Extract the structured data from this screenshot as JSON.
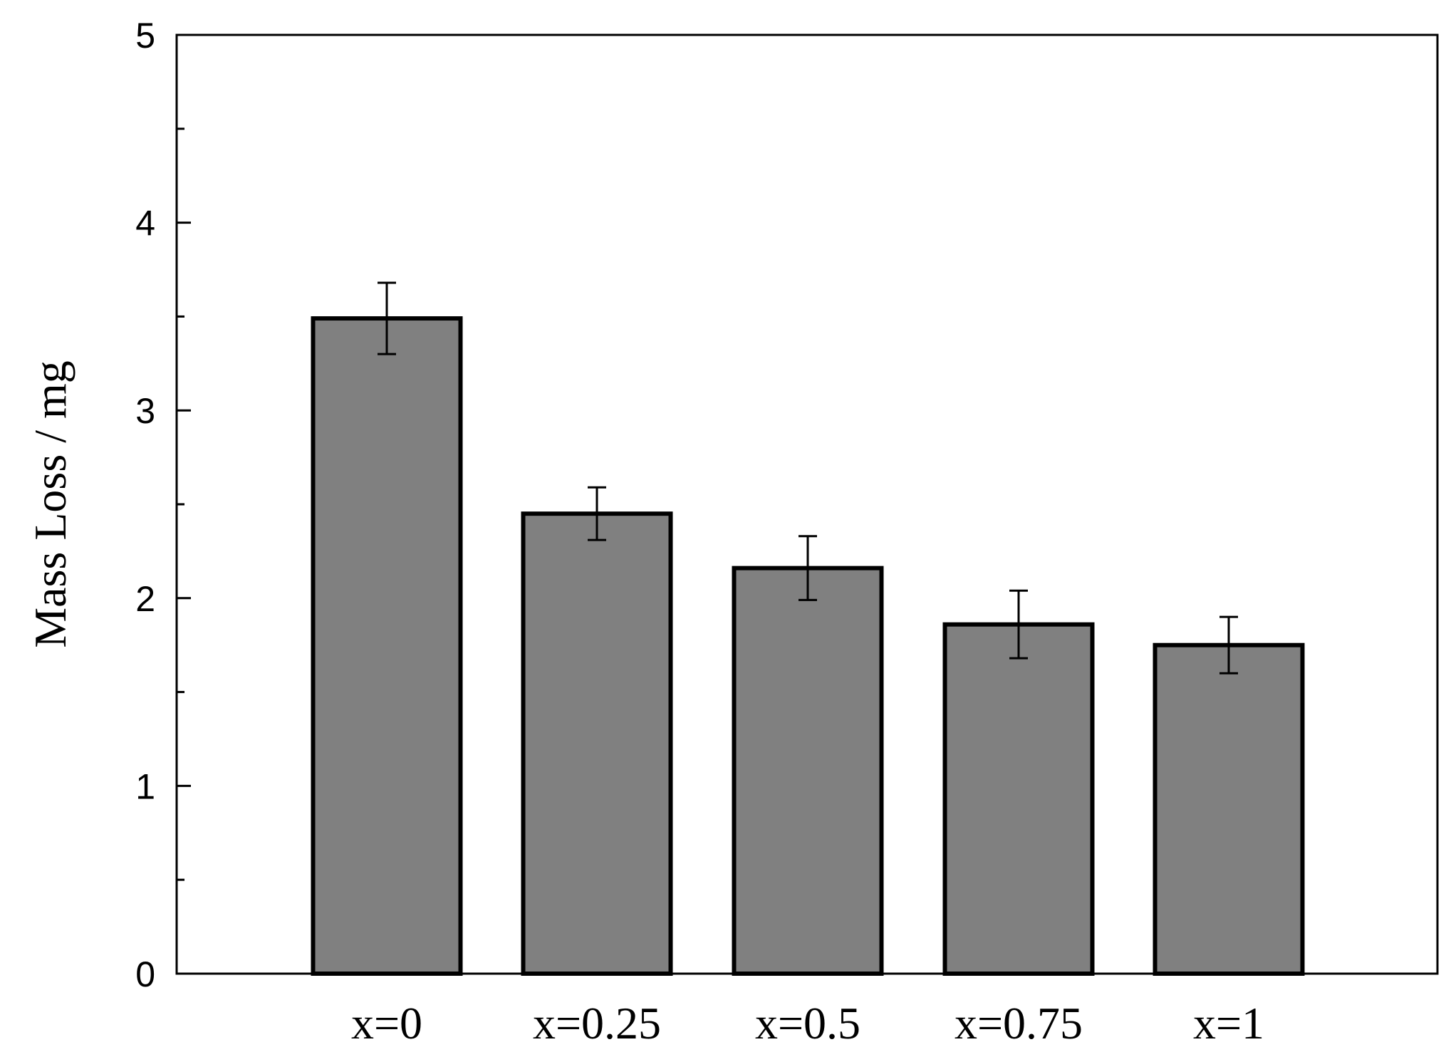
{
  "chart_data": {
    "type": "bar",
    "categories": [
      "x=0",
      "x=0.25",
      "x=0.5",
      "x=0.75",
      "x=1"
    ],
    "values": [
      3.49,
      2.45,
      2.16,
      1.86,
      1.75
    ],
    "error": [
      0.19,
      0.14,
      0.17,
      0.18,
      0.15
    ],
    "title": "",
    "xlabel": "",
    "ylabel": "Mass Loss / mg",
    "ylim": [
      0,
      5
    ],
    "yticks": [
      0,
      1,
      2,
      3,
      4,
      5
    ],
    "ytick_labels": [
      "0",
      "1",
      "2",
      "3",
      "4",
      "5"
    ],
    "grid": false,
    "legend": "none",
    "bar_color": "#808080",
    "edge_color": "#000000"
  }
}
